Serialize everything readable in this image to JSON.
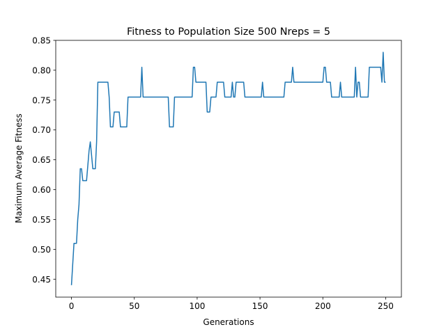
{
  "chart_data": {
    "type": "line",
    "title": "Fitness to Population Size 500 Nreps = 5",
    "x_label": "Generations",
    "y_label": "Maximum Average Fitness",
    "x": [
      0,
      2,
      4,
      5,
      6,
      7,
      8,
      9,
      12,
      14,
      15,
      17,
      19,
      20,
      21,
      29,
      30,
      31,
      33,
      34,
      38,
      39,
      44,
      45,
      55,
      56,
      57,
      77,
      78,
      81,
      82,
      96,
      97,
      98,
      99,
      107,
      108,
      110,
      111,
      115,
      116,
      121,
      122,
      127,
      128,
      129,
      130,
      131,
      137,
      138,
      151,
      152,
      153,
      169,
      170,
      175,
      176,
      177,
      200,
      201,
      202,
      203,
      206,
      207,
      213,
      214,
      215,
      225,
      226,
      227,
      228,
      229,
      230,
      236,
      237,
      246,
      247,
      248,
      249,
      250
    ],
    "series": [
      {
        "color": "#1f77b4",
        "values": [
          0.44,
          0.51,
          0.51,
          0.55,
          0.575,
          0.635,
          0.635,
          0.615,
          0.615,
          0.665,
          0.68,
          0.635,
          0.635,
          0.68,
          0.78,
          0.78,
          0.755,
          0.705,
          0.705,
          0.73,
          0.73,
          0.705,
          0.705,
          0.755,
          0.755,
          0.805,
          0.755,
          0.755,
          0.705,
          0.705,
          0.755,
          0.755,
          0.805,
          0.805,
          0.78,
          0.78,
          0.73,
          0.73,
          0.755,
          0.755,
          0.78,
          0.78,
          0.755,
          0.755,
          0.78,
          0.755,
          0.755,
          0.78,
          0.78,
          0.755,
          0.755,
          0.78,
          0.755,
          0.755,
          0.78,
          0.78,
          0.805,
          0.78,
          0.78,
          0.805,
          0.805,
          0.78,
          0.78,
          0.755,
          0.755,
          0.78,
          0.755,
          0.755,
          0.805,
          0.755,
          0.78,
          0.78,
          0.755,
          0.755,
          0.805,
          0.805,
          0.78,
          0.83,
          0.78,
          0.78
        ]
      }
    ],
    "xlim": [
      -12.5,
      262.5
    ],
    "xticks": [
      0,
      50,
      100,
      150,
      200,
      250
    ],
    "ylim": [
      0.42,
      0.85
    ],
    "yticks": [
      0.45,
      {
        "value": 0.5,
        "label": "0.50"
      },
      0.55,
      {
        "value": 0.6,
        "label": "0.60"
      },
      0.65,
      {
        "value": 0.7,
        "label": "0.70"
      },
      0.75,
      {
        "value": 0.8,
        "label": "0.80"
      },
      0.85
    ],
    "grid": false
  }
}
